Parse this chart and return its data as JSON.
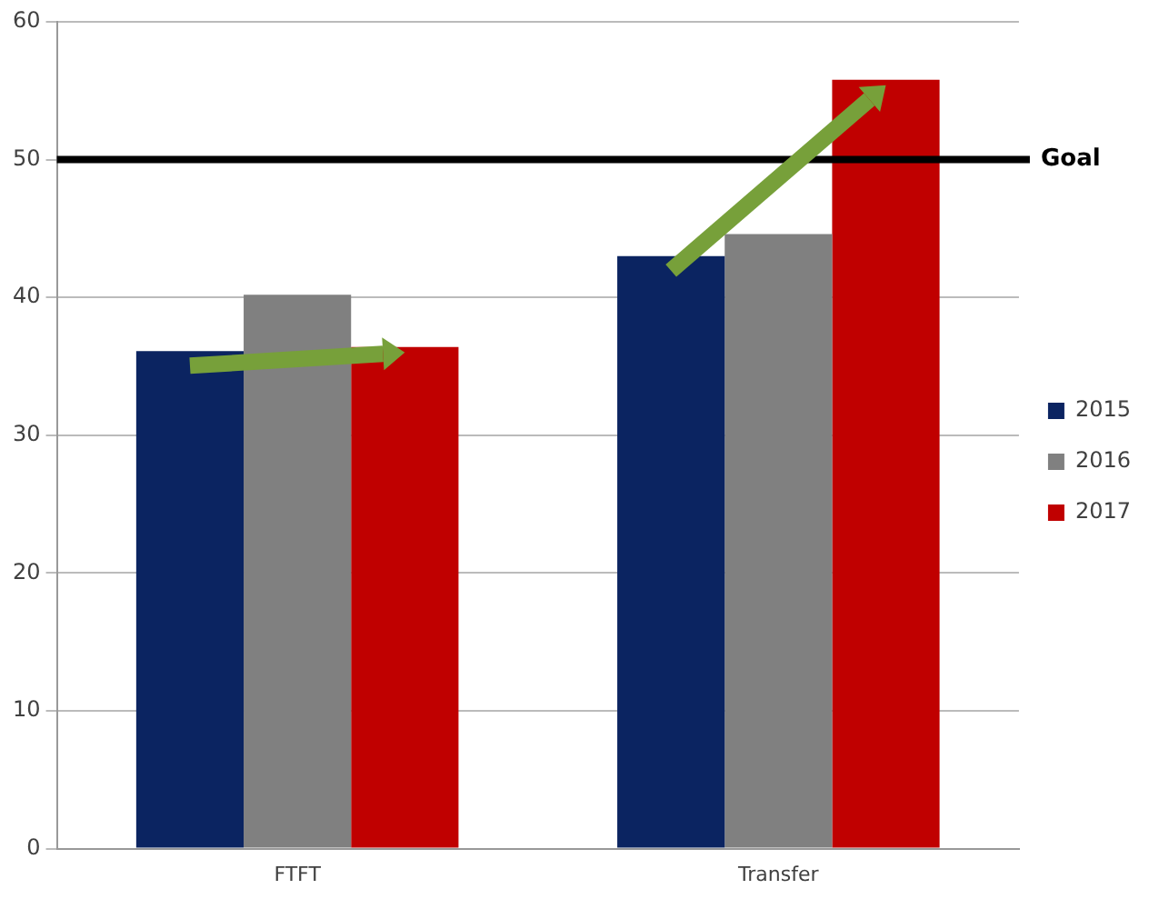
{
  "chart_data": {
    "type": "bar",
    "categories": [
      "FTFT",
      "Transfer"
    ],
    "series": [
      {
        "name": "2015",
        "color": "#0b2461",
        "values": [
          36.1,
          43.0
        ]
      },
      {
        "name": "2016",
        "color": "#808080",
        "values": [
          40.2,
          44.6
        ]
      },
      {
        "name": "2017",
        "color": "#c00000",
        "values": [
          36.4,
          55.8
        ]
      }
    ],
    "ylim": [
      0,
      60
    ],
    "yticks": [
      0,
      10,
      20,
      30,
      40,
      50,
      60
    ],
    "grid": "y",
    "legend": "right",
    "ref_lines": [
      {
        "axis": "y",
        "value": 50,
        "label": "Goal",
        "color": "#000000"
      }
    ]
  }
}
